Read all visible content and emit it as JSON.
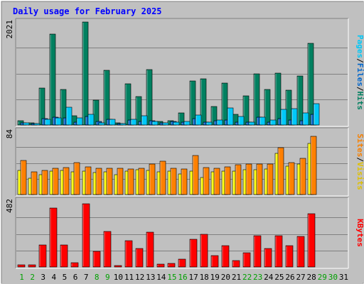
{
  "chart_data": {
    "type": "bar",
    "title": "Daily usage for February 2025",
    "categories": [
      "1",
      "2",
      "3",
      "4",
      "5",
      "6",
      "7",
      "8",
      "9",
      "10",
      "11",
      "12",
      "13",
      "14",
      "15",
      "16",
      "17",
      "18",
      "19",
      "20",
      "21",
      "22",
      "23",
      "24",
      "25",
      "26",
      "27",
      "28",
      "29",
      "30",
      "31"
    ],
    "weekend_days": [
      "1",
      "2",
      "8",
      "9",
      "15",
      "16",
      "22",
      "23",
      "29",
      "30"
    ],
    "panels": [
      {
        "id": "hits",
        "max_label": "2021",
        "ylim": [
          0,
          2021
        ],
        "axis_labels": [
          {
            "text": "Pages",
            "color": "#00c8f8"
          },
          {
            "text": "Files",
            "color": "#0066cc"
          },
          {
            "text": "Hits",
            "color": "#008060"
          }
        ],
        "series": [
          {
            "name": "Hits",
            "color": "#008060",
            "values": [
              89,
              45,
              723,
              1780,
              690,
              182,
              2021,
              485,
              1075,
              38,
              815,
              553,
              1089,
              71,
              89,
              237,
              863,
              903,
              358,
              822,
              205,
              568,
              1002,
              691,
              1014,
              686,
              968,
              1606,
              0,
              0,
              0
            ]
          },
          {
            "name": "Files",
            "color": "#0066cc",
            "values": [
              46,
              25,
              120,
              152,
              144,
              52,
              163,
              63,
              116,
              21,
              92,
              64,
              85,
              44,
              63,
              51,
              120,
              62,
              84,
              93,
              56,
              51,
              158,
              59,
              121,
              92,
              84,
              203,
              0,
              0,
              0
            ]
          },
          {
            "name": "Pages",
            "color": "#00c8f8",
            "values": [
              45,
              23,
              111,
              142,
              345,
              141,
              214,
              47,
              110,
              15,
              110,
              183,
              68,
              45,
              61,
              72,
              189,
              50,
              100,
              330,
              166,
              59,
              149,
              103,
              308,
              319,
              237,
              420,
              0,
              0,
              0
            ]
          }
        ]
      },
      {
        "id": "sites",
        "max_label": "84",
        "ylim": [
          0,
          84
        ],
        "axis_labels": [
          {
            "text": "Sites",
            "color": "#f88000"
          },
          {
            "text": "Visits",
            "color": "#e0c000"
          }
        ],
        "series": [
          {
            "name": "Visits",
            "color": "#ffff00",
            "values": [
              32,
              22,
              26,
              31,
              32,
              30,
              31,
              29,
              30,
              26,
              31,
              33,
              32,
              30,
              31,
              27,
              31,
              23,
              30,
              31,
              31,
              33,
              33,
              34,
              55,
              38,
              41,
              68,
              0,
              0,
              0
            ]
          },
          {
            "name": "Sites",
            "color": "#ff8000",
            "values": [
              45,
              30,
              32,
              35,
              36,
              42,
              37,
              35,
              35,
              35,
              34,
              35,
              41,
              44,
              35,
              34,
              52,
              36,
              35,
              37,
              40,
              41,
              41,
              41,
              62,
              42,
              48,
              77,
              0,
              0,
              0
            ]
          }
        ]
      },
      {
        "id": "kbytes",
        "max_label": "482",
        "ylim": [
          0,
          482
        ],
        "axis_labels": [
          {
            "text": "KBytes",
            "color": "#ff0000"
          }
        ],
        "series": [
          {
            "name": "KBytes",
            "color": "#ff0000",
            "values": [
              15,
              15,
              163,
              432,
              163,
              31,
              463,
              116,
              257,
              10,
              194,
              136,
              252,
              21,
              26,
              57,
              204,
              239,
              84,
              157,
              47,
              105,
              230,
              136,
              230,
              157,
              225,
              390,
              0,
              0,
              0
            ]
          }
        ]
      }
    ],
    "colors": {
      "title": "#0000ff",
      "weekday_label": "#000000",
      "weekend_label": "#00a000",
      "panel_bg": "#c0c0c0",
      "gridline": "#808080"
    }
  }
}
